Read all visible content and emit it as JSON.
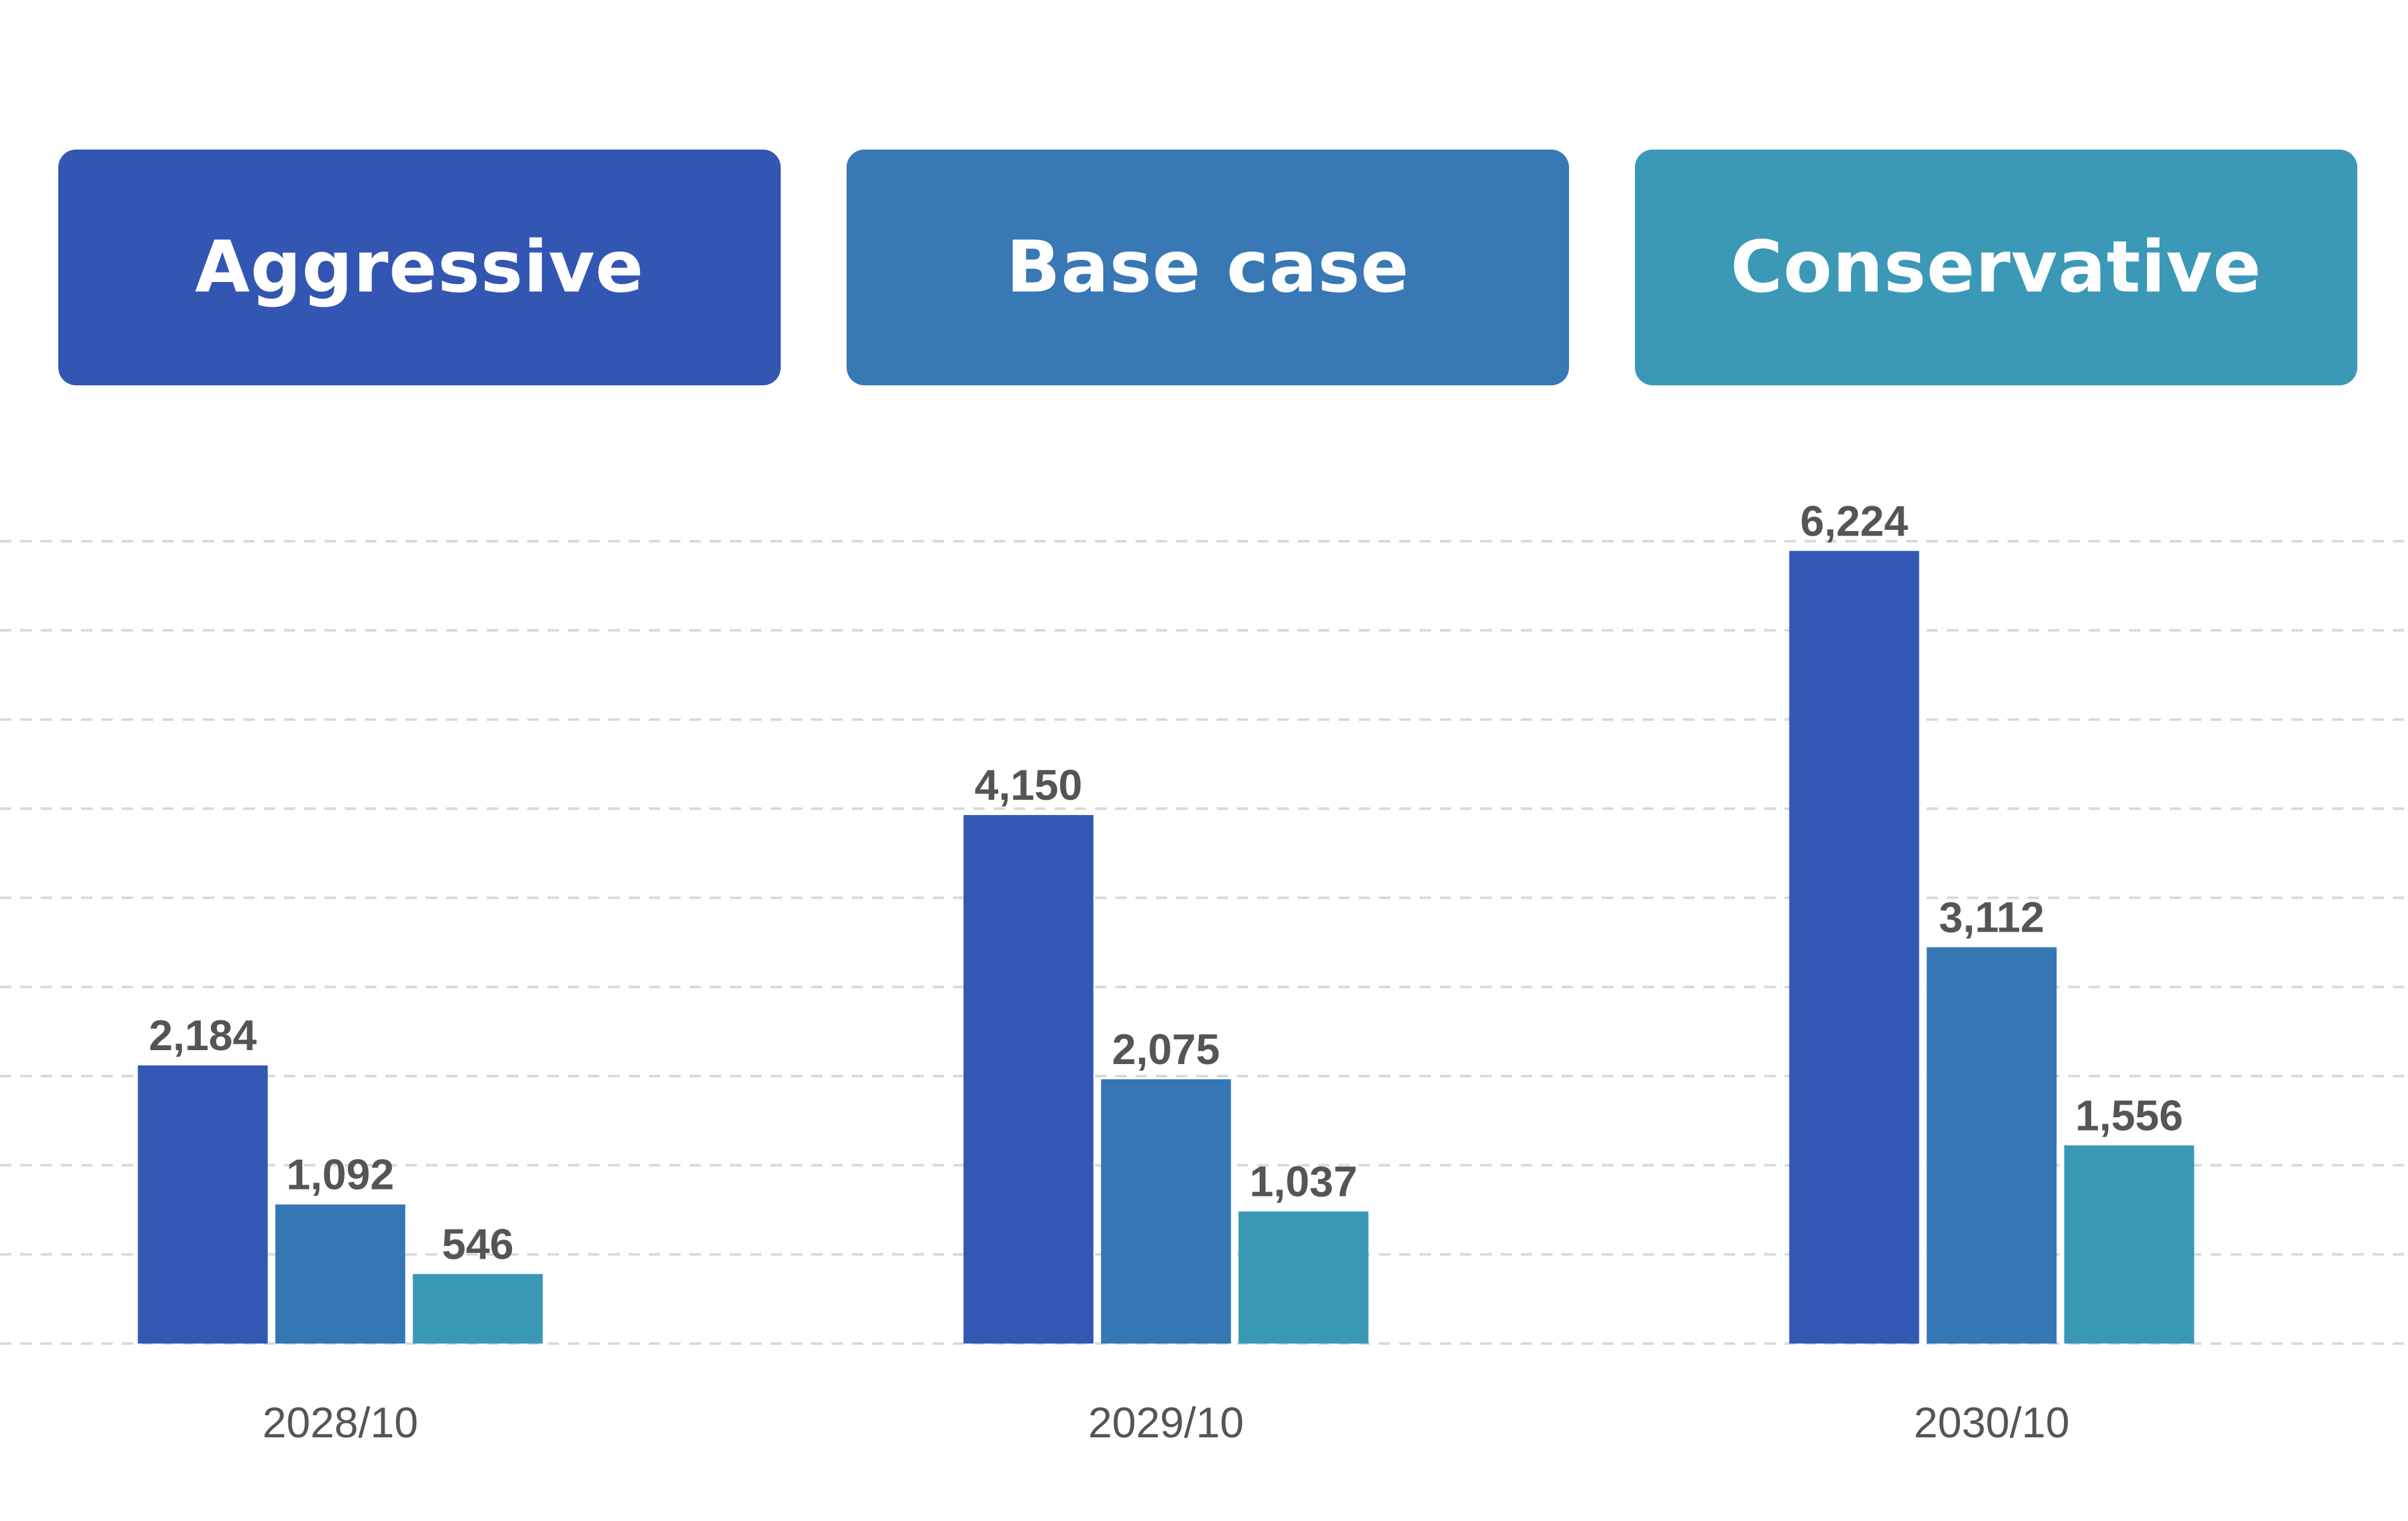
{
  "chart_data": {
    "type": "bar",
    "categories": [
      "2028/10",
      "2029/10",
      "2030/10"
    ],
    "series": [
      {
        "name": "Aggressive",
        "values": [
          2184,
          4150,
          6224
        ],
        "labels": [
          "2,184",
          "4,150",
          "6,224"
        ],
        "color": "#3258b4"
      },
      {
        "name": "Base case",
        "values": [
          1092,
          2075,
          3112
        ],
        "labels": [
          "1,092",
          "2,075",
          "3,112"
        ],
        "color": "#3576b4"
      },
      {
        "name": "Conservative",
        "values": [
          546,
          1037,
          1556
        ],
        "labels": [
          "546",
          "1,037",
          "1,556"
        ],
        "color": "#3898b6"
      }
    ],
    "legend_colors": [
      "#3356b3",
      "#3778b5",
      "#3b98b7"
    ],
    "title": "",
    "xlabel": "",
    "ylabel": "",
    "ylim": [
      0,
      6300
    ],
    "grid": true,
    "legend_position": "top",
    "gridline_values": [
      0,
      700,
      1400,
      2100,
      2800,
      3500,
      4200,
      4900,
      5600,
      6300
    ]
  }
}
